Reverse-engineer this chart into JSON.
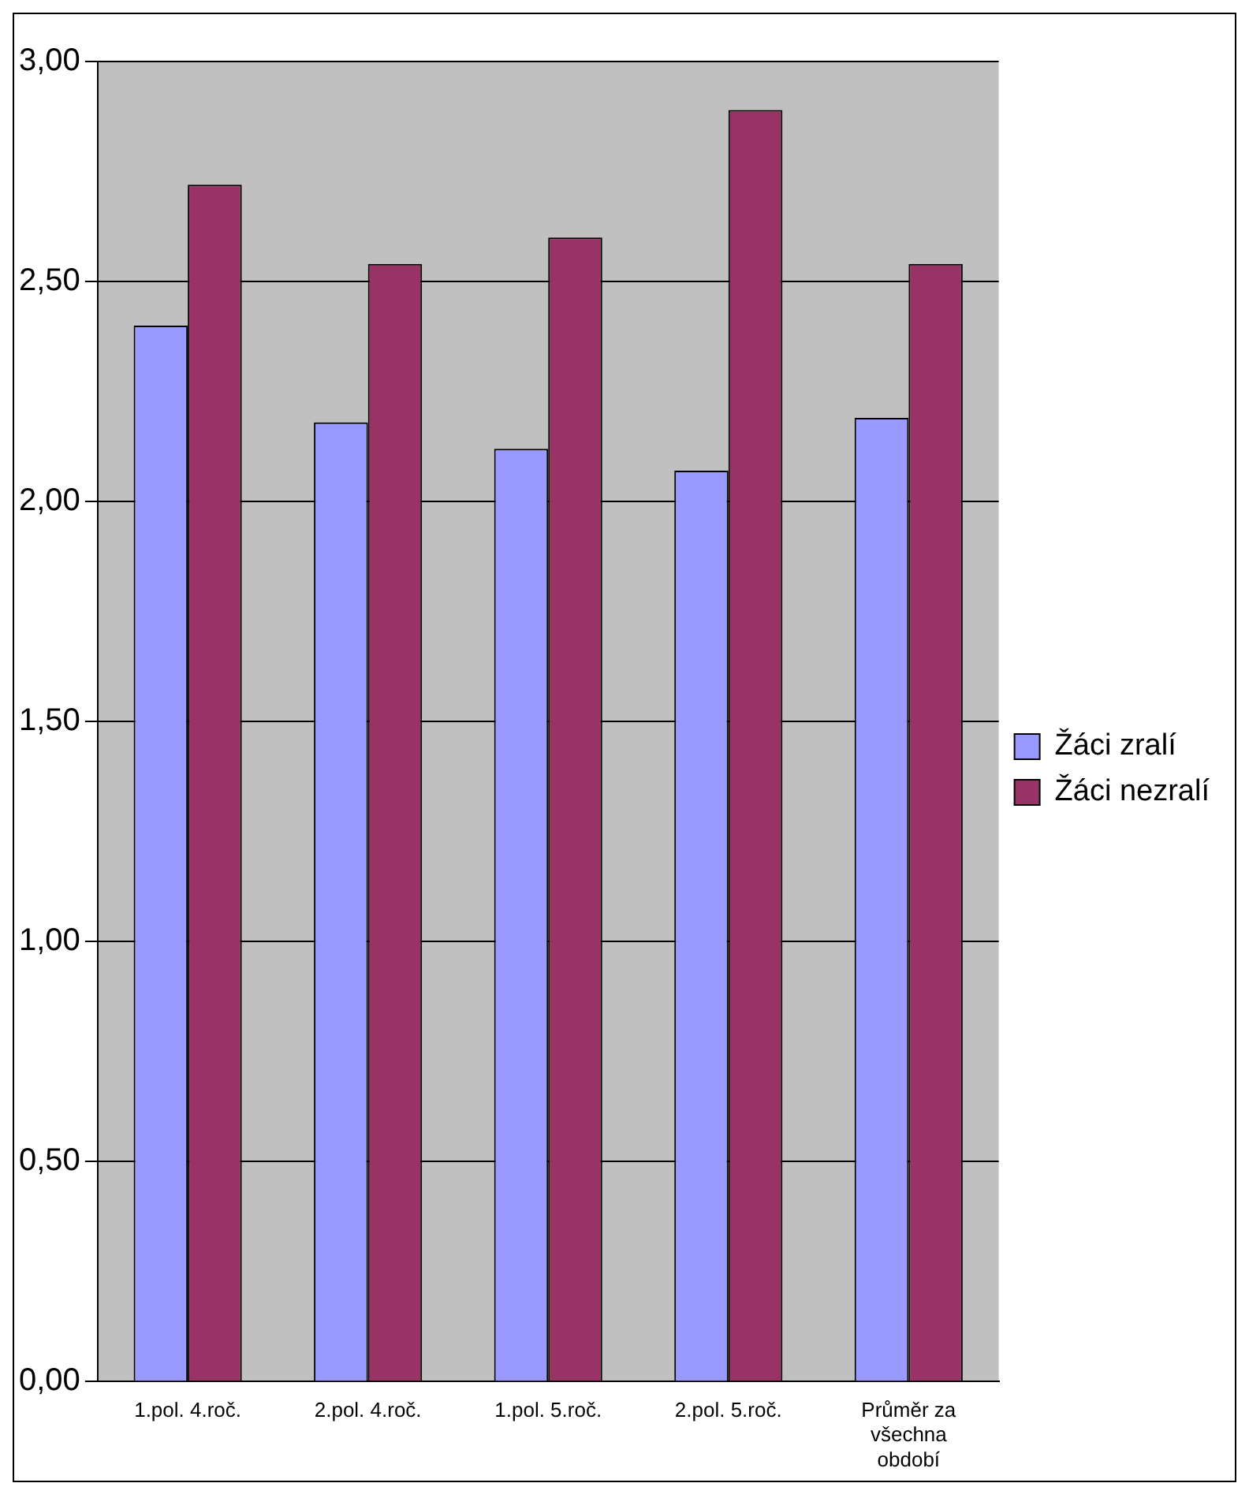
{
  "chart_data": {
    "type": "bar",
    "categories": [
      "1.pol. 4.roč.",
      "2.pol. 4.roč.",
      "1.pol. 5.roč.",
      "2.pol. 5.roč.",
      "Průměr za všechna období"
    ],
    "series": [
      {
        "name": "Žáci zralí",
        "color": "#9999ff",
        "values": [
          2.4,
          2.18,
          2.12,
          2.07,
          2.19
        ]
      },
      {
        "name": "Žáci nezralí",
        "color": "#993366",
        "values": [
          2.72,
          2.54,
          2.6,
          2.89,
          2.54
        ]
      }
    ],
    "ylim": [
      0,
      3
    ],
    "yticks": [
      {
        "value": 0,
        "label": "0,00"
      },
      {
        "value": 0.5,
        "label": "0,50"
      },
      {
        "value": 1,
        "label": "1,00"
      },
      {
        "value": 1.5,
        "label": "1,50"
      },
      {
        "value": 2,
        "label": "2,00"
      },
      {
        "value": 2.5,
        "label": "2,50"
      },
      {
        "value": 3,
        "label": "3,00"
      }
    ],
    "grid": "y",
    "legend": "right"
  }
}
